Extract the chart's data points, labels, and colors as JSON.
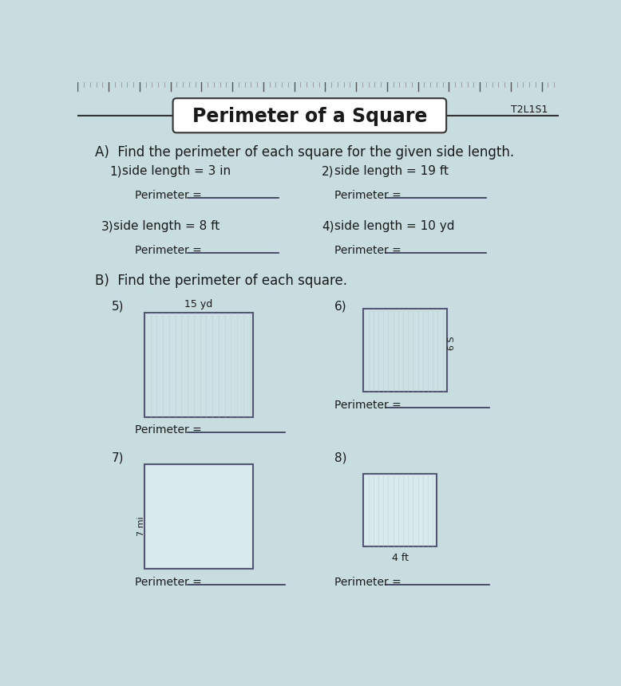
{
  "title": "Perimeter of a Square",
  "code": "T2L1S1",
  "section_a_title": "A)  Find the perimeter of each square for the given side length.",
  "section_b_title": "B)  Find the perimeter of each square.",
  "problems_a": [
    {
      "num": "1)",
      "text": "side length = 3 in"
    },
    {
      "num": "2)",
      "text": "side length = 19 ft"
    },
    {
      "num": "3)",
      "text": "side length = 8 ft"
    },
    {
      "num": "4)",
      "text": "side length = 10 yd"
    }
  ],
  "bg_color": "#c8dde0",
  "box_border_color": "#555577",
  "text_color": "#1a1a1a",
  "line_color": "#333355",
  "sq5_label_top": "15 yd",
  "sq6_label_side": "6 S",
  "sq7_label_side": "7 mi",
  "sq8_label_bottom": "4 ft"
}
